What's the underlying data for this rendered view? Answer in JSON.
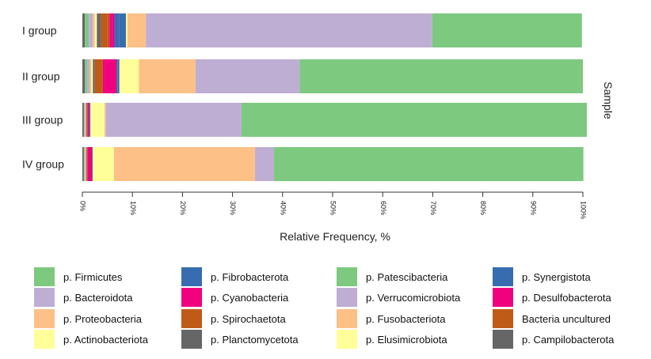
{
  "chart_data": {
    "type": "bar",
    "orientation": "horizontal",
    "stacked": true,
    "categories": [
      "I group",
      "II group",
      "III group",
      "IV group"
    ],
    "xlabel": "Relative Frequency, %",
    "ylabel": "Sample",
    "xlim": [
      0,
      100
    ],
    "xticks": [
      "0%",
      "10%",
      "20%",
      "30%",
      "40%",
      "50%",
      "60%",
      "70%",
      "80%",
      "90%",
      "100%"
    ],
    "legend_position": "bottom",
    "series": [
      {
        "name": "p. Planctomycetota",
        "color": "#666666",
        "values": [
          0.5,
          0.5,
          0.3,
          0.3
        ]
      },
      {
        "name": "p. Patescibacteria",
        "color": "#7dc97f",
        "values": [
          0.8,
          0.5,
          0.1,
          0.1
        ]
      },
      {
        "name": "p. Verrucomicrobiota",
        "color": "#beaed4",
        "values": [
          0.8,
          0.5,
          0.1,
          0.1
        ]
      },
      {
        "name": "p. Fusobacteriota",
        "color": "#fdc086",
        "values": [
          0.4,
          0.3,
          0.1,
          0.1
        ]
      },
      {
        "name": "p. Elusimicrobiota",
        "color": "#ffff99",
        "values": [
          0.4,
          0.3,
          0.1,
          0.1
        ]
      },
      {
        "name": "p. Campilobacterota",
        "color": "#666666",
        "values": [
          0.8,
          0.4,
          0.1,
          0.1
        ]
      },
      {
        "name": "Bacteria uncultured",
        "color": "#bf5b17",
        "values": [
          1.3,
          1.3,
          0.1,
          0.1
        ]
      },
      {
        "name": "p. Spirochaetota",
        "color": "#bf5b17",
        "values": [
          0.4,
          0.3,
          0.1,
          0.1
        ]
      },
      {
        "name": "p. Desulfobacterota",
        "color": "#f0027f",
        "values": [
          0.6,
          0.4,
          0.1,
          0.1
        ]
      },
      {
        "name": "p. Cyanobacteria",
        "color": "#f0027f",
        "values": [
          0.4,
          2.3,
          0.3,
          0.8
        ]
      },
      {
        "name": "p. Synergistota",
        "color": "#386cb0",
        "values": [
          1.0,
          0.2,
          0.1,
          0.1
        ]
      },
      {
        "name": "p. Fibrobacterota",
        "color": "#386cb0",
        "values": [
          1.3,
          0.4,
          0.1,
          0.1
        ]
      },
      {
        "name": "p. Actinobacteriota",
        "color": "#ffff99",
        "values": [
          0.3,
          3.9,
          2.8,
          4.2
        ]
      },
      {
        "name": "p. Proteobacteria",
        "color": "#fdc086",
        "values": [
          3.7,
          11.3,
          0.3,
          28.2
        ]
      },
      {
        "name": "p. Bacteroidota",
        "color": "#beaed4",
        "values": [
          57.2,
          20.8,
          27.1,
          3.8
        ]
      },
      {
        "name": "p. Firmicutes",
        "color": "#7dc97f",
        "values": [
          29.9,
          56.6,
          69.0,
          61.8
        ]
      }
    ]
  },
  "legend": [
    {
      "label": "p. Firmicutes",
      "color": "#7dc97f",
      "icon": "square-swatch"
    },
    {
      "label": "p. Bacteroidota",
      "color": "#beaed4",
      "icon": "square-swatch"
    },
    {
      "label": "p. Proteobacteria",
      "color": "#fdc086",
      "icon": "square-swatch"
    },
    {
      "label": "p. Actinobacteriota",
      "color": "#ffff99",
      "icon": "square-swatch"
    },
    {
      "label": "p. Fibrobacterota",
      "color": "#386cb0",
      "icon": "square-swatch"
    },
    {
      "label": "p. Cyanobacteria",
      "color": "#f0027f",
      "icon": "square-swatch"
    },
    {
      "label": "p. Spirochaetota",
      "color": "#bf5b17",
      "icon": "square-swatch"
    },
    {
      "label": "p. Planctomycetota",
      "color": "#666666",
      "icon": "square-swatch"
    },
    {
      "label": "p. Patescibacteria",
      "color": "#7dc97f",
      "icon": "square-swatch"
    },
    {
      "label": "p. Verrucomicrobiota",
      "color": "#beaed4",
      "icon": "square-swatch"
    },
    {
      "label": "p. Fusobacteriota",
      "color": "#fdc086",
      "icon": "square-swatch"
    },
    {
      "label": "p. Elusimicrobiota",
      "color": "#ffff99",
      "icon": "square-swatch"
    },
    {
      "label": "p. Synergistota",
      "color": "#386cb0",
      "icon": "square-swatch"
    },
    {
      "label": "p. Desulfobacterota",
      "color": "#f0027f",
      "icon": "square-swatch"
    },
    {
      "label": "Bacteria uncultured",
      "color": "#bf5b17",
      "icon": "square-swatch"
    },
    {
      "label": "p. Campilobacterota",
      "color": "#666666",
      "icon": "square-swatch"
    }
  ]
}
